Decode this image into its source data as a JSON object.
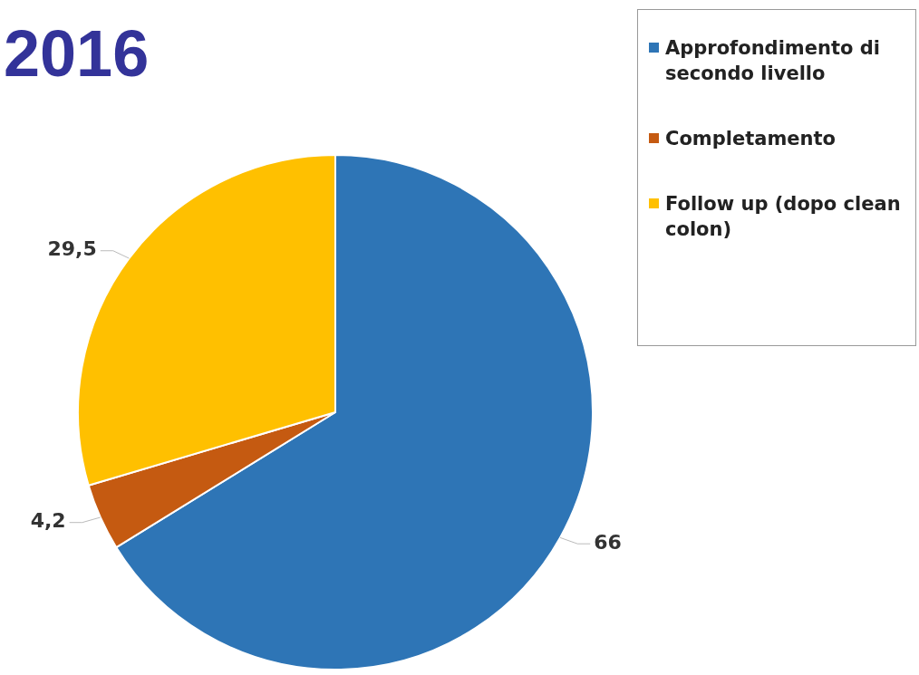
{
  "chart_data": {
    "type": "pie",
    "title": "2016",
    "categories": [
      "Approfondimento di secondo livello",
      "Completamento",
      "Follow up (dopo clean colon)"
    ],
    "values": [
      66,
      4.2,
      29.5
    ],
    "colors": [
      "#2e75b6",
      "#c55a11",
      "#ffc000"
    ],
    "value_labels": [
      "66",
      "4,2",
      "29,5"
    ],
    "legend": "top right"
  }
}
